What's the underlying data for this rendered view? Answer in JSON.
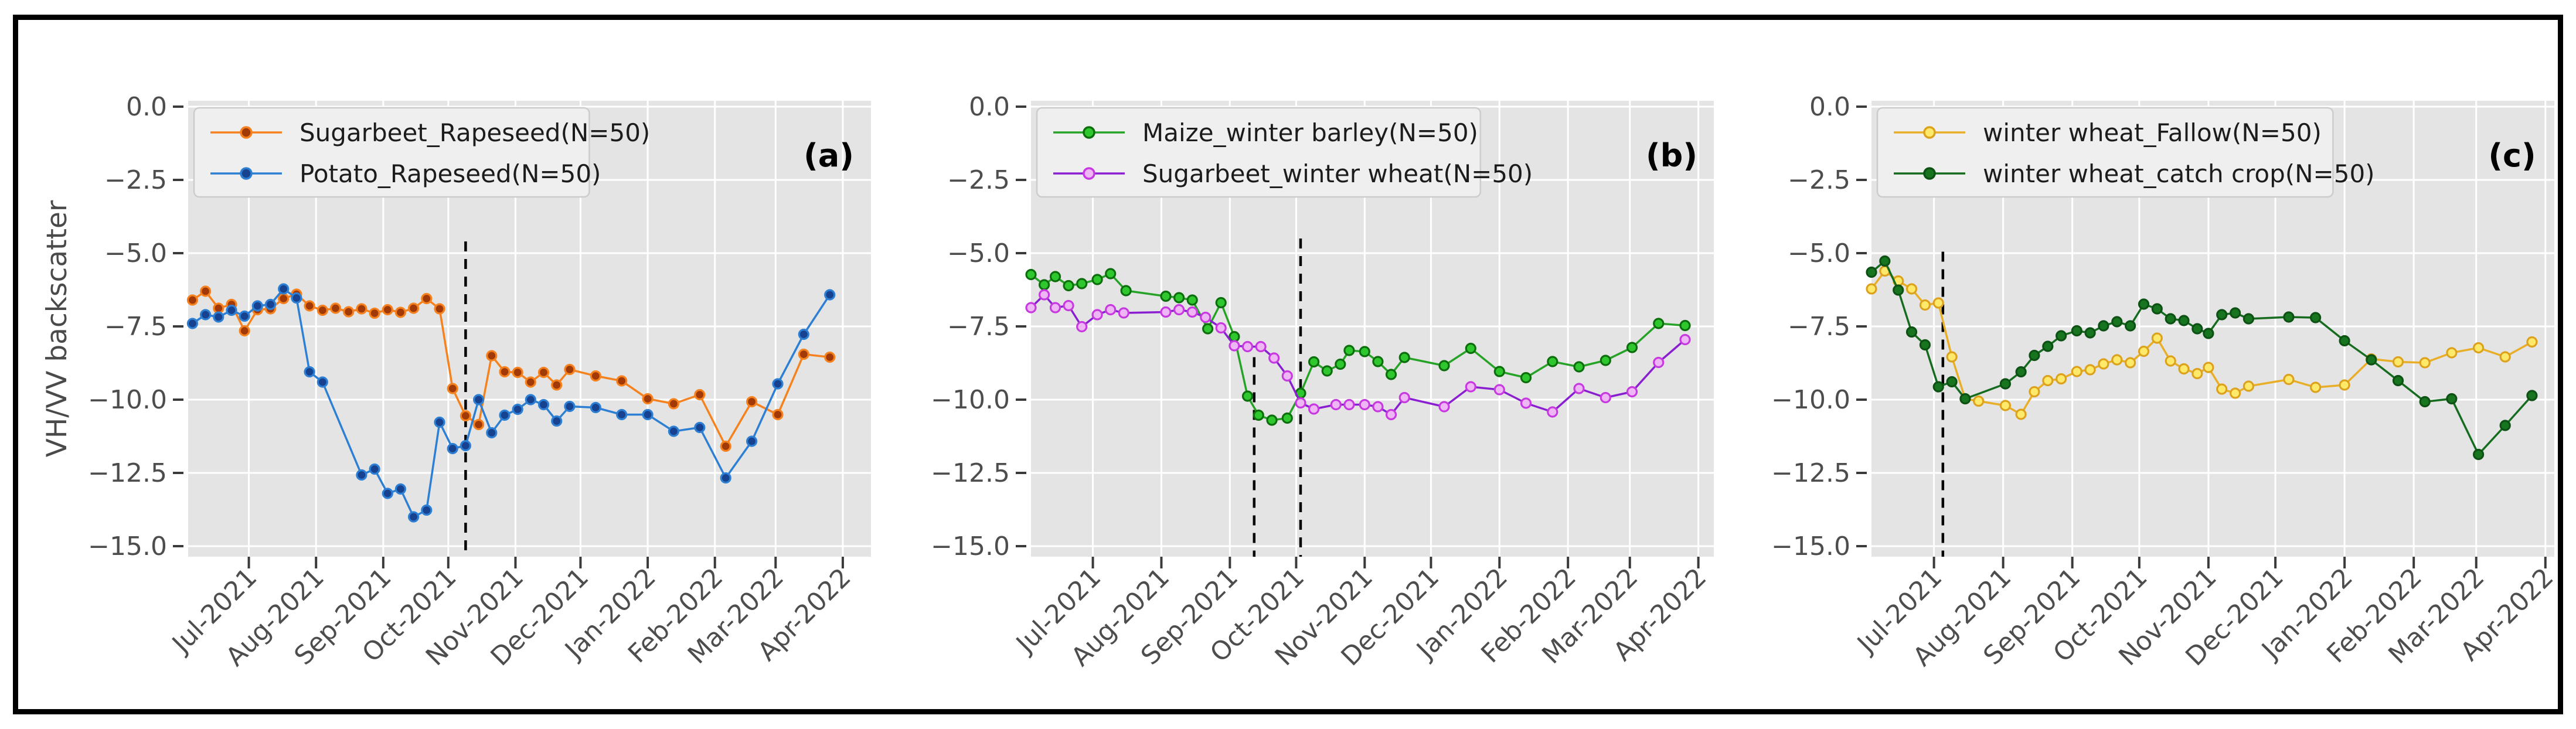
{
  "figure": {
    "y_axis_label": "VH/VV backscatter",
    "plot_bg": "#e4e4e4",
    "grid_color": "#ffffff",
    "frame_color": "#000000",
    "tick_label_color": "#4d4d4d",
    "legend_bg": "#efefef",
    "legend_border": "#cccccc",
    "dashed_line_color": "#000000",
    "yticks": [
      {
        "v": 0,
        "label": "0.0"
      },
      {
        "v": -2.5,
        "label": "−2.5"
      },
      {
        "v": -5.0,
        "label": "−5.0"
      },
      {
        "v": -7.5,
        "label": "−7.5"
      },
      {
        "v": -10.0,
        "label": "−10.0"
      },
      {
        "v": -12.5,
        "label": "−12.5"
      },
      {
        "v": -15.0,
        "label": "−15.0"
      }
    ],
    "xticks": [
      {
        "date": "2021-07-01",
        "label": "Jul-2021"
      },
      {
        "date": "2021-08-01",
        "label": "Aug-2021"
      },
      {
        "date": "2021-09-01",
        "label": "Sep-2021"
      },
      {
        "date": "2021-10-01",
        "label": "Oct-2021"
      },
      {
        "date": "2021-11-01",
        "label": "Nov-2021"
      },
      {
        "date": "2021-12-01",
        "label": "Dec-2021"
      },
      {
        "date": "2022-01-01",
        "label": "Jan-2022"
      },
      {
        "date": "2022-02-01",
        "label": "Feb-2022"
      },
      {
        "date": "2022-03-01",
        "label": "Mar-2022"
      },
      {
        "date": "2022-04-01",
        "label": "Apr-2022"
      }
    ]
  },
  "chart_data": [
    {
      "type": "line",
      "panel_label": "(a)",
      "ylabel": "VH/VV backscatter",
      "ylim": [
        0.36,
        -15.36
      ],
      "xlim": [
        "2021-06-03",
        "2022-04-14"
      ],
      "grid": true,
      "legend_position": "upper-left",
      "dashed_vlines": [
        {
          "date": "2021-10-09",
          "from_value": -4.6
        }
      ],
      "series": [
        {
          "name": "Sugarbeet_Rapeseed(N=50)",
          "line_color": "#f5821e",
          "marker_edge": "#f5821e",
          "marker_face": "#a23a07",
          "x": [
            "2021-06-05",
            "2021-06-11",
            "2021-06-17",
            "2021-06-23",
            "2021-06-29",
            "2021-07-05",
            "2021-07-11",
            "2021-07-17",
            "2021-07-23",
            "2021-07-29",
            "2021-08-04",
            "2021-08-10",
            "2021-08-16",
            "2021-08-22",
            "2021-08-28",
            "2021-09-03",
            "2021-09-09",
            "2021-09-15",
            "2021-09-21",
            "2021-09-27",
            "2021-10-03",
            "2021-10-09",
            "2021-10-15",
            "2021-10-21",
            "2021-10-27",
            "2021-11-02",
            "2021-11-08",
            "2021-11-14",
            "2021-11-20",
            "2021-11-26",
            "2021-12-08",
            "2021-12-20",
            "2022-01-01",
            "2022-01-13",
            "2022-01-25",
            "2022-02-06",
            "2022-02-18",
            "2022-03-02",
            "2022-03-14",
            "2022-03-26"
          ],
          "y": [
            -6.6,
            -6.3,
            -6.88,
            -6.75,
            -7.65,
            -6.93,
            -6.9,
            -6.55,
            -6.4,
            -6.8,
            -6.95,
            -6.88,
            -7.0,
            -6.9,
            -7.05,
            -6.93,
            -7.02,
            -6.88,
            -6.55,
            -6.9,
            -9.62,
            -10.55,
            -10.85,
            -8.5,
            -9.05,
            -9.07,
            -9.4,
            -9.07,
            -9.5,
            -8.97,
            -9.19,
            -9.36,
            -9.97,
            -10.14,
            -9.83,
            -11.59,
            -10.07,
            -10.51,
            -8.45,
            -8.55
          ]
        },
        {
          "name": "Potato_Rapeseed(N=50)",
          "line_color": "#2d7fd4",
          "marker_edge": "#2d7fd4",
          "marker_face": "#17428f",
          "x": [
            "2021-06-05",
            "2021-06-11",
            "2021-06-17",
            "2021-06-23",
            "2021-06-29",
            "2021-07-05",
            "2021-07-11",
            "2021-07-17",
            "2021-07-23",
            "2021-07-29",
            "2021-08-04",
            "2021-08-22",
            "2021-08-28",
            "2021-09-03",
            "2021-09-09",
            "2021-09-15",
            "2021-09-21",
            "2021-09-27",
            "2021-10-03",
            "2021-10-09",
            "2021-10-15",
            "2021-10-21",
            "2021-10-27",
            "2021-11-02",
            "2021-11-08",
            "2021-11-14",
            "2021-11-20",
            "2021-11-26",
            "2021-12-08",
            "2021-12-20",
            "2022-01-01",
            "2022-01-13",
            "2022-01-25",
            "2022-02-06",
            "2022-02-18",
            "2022-03-02",
            "2022-03-14",
            "2022-03-26"
          ],
          "y": [
            -7.4,
            -7.1,
            -7.18,
            -6.95,
            -7.15,
            -6.8,
            -6.75,
            -6.22,
            -6.53,
            -9.05,
            -9.4,
            -12.57,
            -12.37,
            -13.2,
            -13.05,
            -14.0,
            -13.77,
            -10.77,
            -11.67,
            -11.57,
            -10.0,
            -11.13,
            -10.53,
            -10.33,
            -10.0,
            -10.17,
            -10.73,
            -10.23,
            -10.27,
            -10.51,
            -10.51,
            -11.08,
            -10.95,
            -12.67,
            -11.42,
            -9.46,
            -7.77,
            -6.42
          ]
        }
      ]
    },
    {
      "type": "line",
      "panel_label": "(b)",
      "ylim": [
        0.36,
        -15.36
      ],
      "xlim": [
        "2021-06-03",
        "2022-04-08"
      ],
      "grid": true,
      "legend_position": "upper-left",
      "dashed_vlines": [
        {
          "date": "2021-09-12",
          "from_value": -8.55
        },
        {
          "date": "2021-10-03",
          "from_value": -4.5
        }
      ],
      "series": [
        {
          "name": "Maize_winter barley(N=50)",
          "line_color": "#26a326",
          "marker_edge": "#0c6e0c",
          "marker_face": "#2ec82e",
          "x": [
            "2021-06-03",
            "2021-06-09",
            "2021-06-14",
            "2021-06-20",
            "2021-06-26",
            "2021-07-03",
            "2021-07-09",
            "2021-07-16",
            "2021-08-03",
            "2021-08-09",
            "2021-08-15",
            "2021-08-22",
            "2021-08-28",
            "2021-09-03",
            "2021-09-09",
            "2021-09-14",
            "2021-09-20",
            "2021-09-27",
            "2021-10-03",
            "2021-10-09",
            "2021-10-15",
            "2021-10-21",
            "2021-10-25",
            "2021-11-01",
            "2021-11-07",
            "2021-11-13",
            "2021-11-19",
            "2021-12-07",
            "2021-12-19",
            "2022-01-01",
            "2022-01-13",
            "2022-01-25",
            "2022-02-06",
            "2022-02-18",
            "2022-03-02",
            "2022-03-14",
            "2022-03-26"
          ],
          "y": [
            -5.73,
            -6.08,
            -5.8,
            -6.11,
            -6.04,
            -5.9,
            -5.7,
            -6.28,
            -6.47,
            -6.52,
            -6.6,
            -7.58,
            -6.69,
            -7.85,
            -9.88,
            -10.53,
            -10.7,
            -10.63,
            -9.78,
            -8.71,
            -9.02,
            -8.79,
            -8.32,
            -8.36,
            -8.7,
            -9.14,
            -8.56,
            -8.84,
            -8.25,
            -9.04,
            -9.25,
            -8.7,
            -8.88,
            -8.66,
            -8.22,
            -7.4,
            -7.47
          ]
        },
        {
          "name": "Sugarbeet_winter wheat(N=50)",
          "line_color": "#8a1ed1",
          "marker_edge": "#c63ae0",
          "marker_face": "#efb6f5",
          "x": [
            "2021-06-03",
            "2021-06-09",
            "2021-06-14",
            "2021-06-20",
            "2021-06-26",
            "2021-07-03",
            "2021-07-09",
            "2021-07-15",
            "2021-08-03",
            "2021-08-09",
            "2021-08-15",
            "2021-08-21",
            "2021-08-28",
            "2021-09-03",
            "2021-09-09",
            "2021-09-15",
            "2021-09-21",
            "2021-09-27",
            "2021-10-03",
            "2021-10-09",
            "2021-10-19",
            "2021-10-25",
            "2021-11-01",
            "2021-11-07",
            "2021-11-13",
            "2021-11-19",
            "2021-12-07",
            "2021-12-19",
            "2022-01-01",
            "2022-01-13",
            "2022-01-25",
            "2022-02-06",
            "2022-02-18",
            "2022-03-02",
            "2022-03-14",
            "2022-03-26"
          ],
          "y": [
            -6.86,
            -6.42,
            -6.86,
            -6.79,
            -7.51,
            -7.1,
            -6.93,
            -7.04,
            -7.01,
            -6.93,
            -7.01,
            -7.19,
            -7.55,
            -8.16,
            -8.19,
            -8.19,
            -8.58,
            -9.19,
            -10.11,
            -10.32,
            -10.17,
            -10.17,
            -10.17,
            -10.24,
            -10.51,
            -9.93,
            -10.24,
            -9.56,
            -9.66,
            -10.12,
            -10.42,
            -9.62,
            -9.93,
            -9.73,
            -8.73,
            -7.95
          ]
        }
      ]
    },
    {
      "type": "line",
      "panel_label": "(c)",
      "ylim": [
        0.36,
        -15.36
      ],
      "xlim": [
        "2021-06-03",
        "2022-04-05"
      ],
      "grid": true,
      "legend_position": "upper-left",
      "dashed_vlines": [
        {
          "date": "2021-07-05",
          "from_value": -4.95
        }
      ],
      "series": [
        {
          "name": "winter wheat_Fallow(N=50)",
          "line_color": "#e9ae27",
          "marker_edge": "#dca21e",
          "marker_face": "#ffe96a",
          "x": [
            "2021-06-03",
            "2021-06-09",
            "2021-06-15",
            "2021-06-21",
            "2021-06-27",
            "2021-07-03",
            "2021-07-09",
            "2021-07-15",
            "2021-07-21",
            "2021-08-02",
            "2021-08-09",
            "2021-08-15",
            "2021-08-21",
            "2021-08-27",
            "2021-09-03",
            "2021-09-09",
            "2021-09-15",
            "2021-09-21",
            "2021-09-27",
            "2021-10-03",
            "2021-10-09",
            "2021-10-15",
            "2021-10-21",
            "2021-10-27",
            "2021-11-01",
            "2021-11-07",
            "2021-11-13",
            "2021-11-19",
            "2021-12-07",
            "2021-12-19",
            "2022-01-01",
            "2022-01-13",
            "2022-01-25",
            "2022-02-06",
            "2022-02-18",
            "2022-03-02",
            "2022-03-14",
            "2022-03-26"
          ],
          "y": [
            -6.22,
            -5.61,
            -5.95,
            -6.22,
            -6.77,
            -6.7,
            -8.54,
            -9.97,
            -10.05,
            -10.2,
            -10.5,
            -9.73,
            -9.35,
            -9.29,
            -9.04,
            -8.98,
            -8.78,
            -8.64,
            -8.74,
            -8.35,
            -7.9,
            -8.68,
            -8.95,
            -9.11,
            -8.9,
            -9.64,
            -9.78,
            -9.54,
            -9.31,
            -9.58,
            -9.5,
            -8.61,
            -8.71,
            -8.74,
            -8.4,
            -8.23,
            -8.54,
            -8.03
          ]
        },
        {
          "name": "winter wheat_catch crop(N=50)",
          "line_color": "#166c1e",
          "marker_edge": "#0d5214",
          "marker_face": "#17751f",
          "x": [
            "2021-06-03",
            "2021-06-09",
            "2021-06-15",
            "2021-06-21",
            "2021-06-27",
            "2021-07-03",
            "2021-07-09",
            "2021-07-15",
            "2021-08-02",
            "2021-08-09",
            "2021-08-15",
            "2021-08-21",
            "2021-08-27",
            "2021-09-03",
            "2021-09-09",
            "2021-09-15",
            "2021-09-21",
            "2021-09-27",
            "2021-10-03",
            "2021-10-09",
            "2021-10-15",
            "2021-10-21",
            "2021-10-27",
            "2021-11-01",
            "2021-11-07",
            "2021-11-13",
            "2021-11-19",
            "2021-12-07",
            "2021-12-19",
            "2022-01-01",
            "2022-01-13",
            "2022-01-25",
            "2022-02-06",
            "2022-02-18",
            "2022-03-02",
            "2022-03-14",
            "2022-03-26"
          ],
          "y": [
            -5.65,
            -5.27,
            -6.26,
            -7.69,
            -8.13,
            -9.56,
            -9.39,
            -9.97,
            -9.46,
            -9.05,
            -8.49,
            -8.18,
            -7.82,
            -7.65,
            -7.72,
            -7.48,
            -7.34,
            -7.48,
            -6.74,
            -6.9,
            -7.24,
            -7.3,
            -7.58,
            -7.74,
            -7.1,
            -7.04,
            -7.24,
            -7.18,
            -7.2,
            -7.99,
            -8.64,
            -9.35,
            -10.07,
            -9.97,
            -11.87,
            -10.88,
            -9.86
          ]
        }
      ]
    }
  ]
}
